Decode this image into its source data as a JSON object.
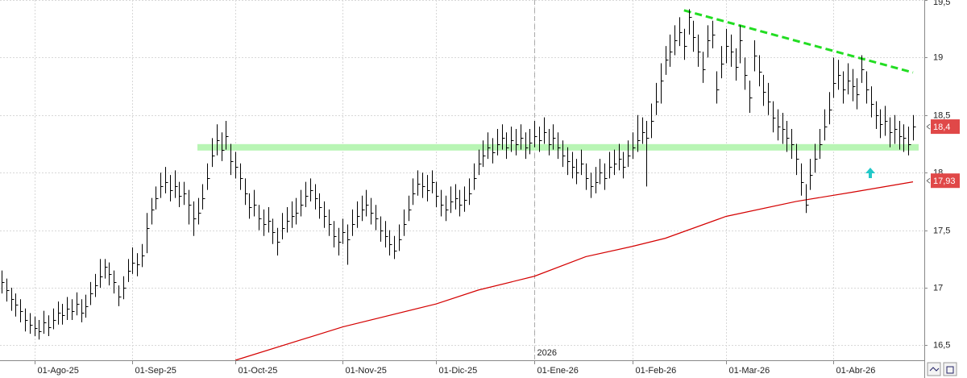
{
  "chart_data": {
    "type": "ohlc",
    "categories": [
      null,
      null,
      null,
      null,
      null,
      null,
      null,
      "01-Ago-25",
      null,
      null,
      null,
      null,
      null,
      null,
      null,
      null,
      null,
      null,
      null,
      null,
      null,
      null,
      null,
      null,
      null,
      null,
      null,
      null,
      "01-Sep-25",
      null,
      null,
      null,
      null,
      null,
      null,
      null,
      null,
      null,
      null,
      null,
      null,
      null,
      null,
      null,
      null,
      null,
      null,
      null,
      null,
      null,
      "01-Oct-25",
      null,
      null,
      null,
      null,
      null,
      null,
      null,
      null,
      null,
      null,
      null,
      null,
      null,
      null,
      null,
      null,
      null,
      null,
      null,
      null,
      null,
      null,
      "01-Nov-25",
      null,
      null,
      null,
      null,
      null,
      null,
      null,
      null,
      null,
      null,
      null,
      null,
      null,
      null,
      null,
      null,
      null,
      null,
      null,
      "01-Dic-25",
      null,
      null,
      null,
      null,
      null,
      null,
      null,
      null,
      null,
      null,
      null,
      null,
      null,
      null,
      null,
      null,
      null,
      null,
      null,
      null,
      "01-Ene-26",
      null,
      null,
      null,
      null,
      null,
      null,
      null,
      null,
      null,
      null,
      null,
      null,
      null,
      null,
      null,
      null,
      null,
      null,
      null,
      null,
      "01-Feb-26",
      null,
      null,
      null,
      null,
      null,
      null,
      null,
      null,
      null,
      null,
      null,
      null,
      null,
      null,
      null,
      null,
      null,
      null,
      null,
      "01-Mar-26",
      null,
      null,
      null,
      null,
      null,
      null,
      null,
      null,
      null,
      null,
      null,
      null,
      null,
      null,
      null,
      null,
      null,
      null,
      null,
      null,
      null,
      null,
      "01-Abr-26",
      null,
      null,
      null,
      null,
      null,
      null,
      null,
      null,
      null,
      null,
      null,
      null,
      null,
      null,
      null,
      null,
      null
    ],
    "high": [
      17.15,
      17.08,
      17.0,
      16.95,
      16.9,
      16.82,
      16.78,
      16.75,
      16.72,
      16.8,
      16.76,
      16.82,
      16.88,
      16.86,
      16.92,
      16.9,
      16.96,
      16.9,
      16.94,
      17.05,
      17.12,
      17.25,
      17.25,
      17.22,
      17.15,
      17.02,
      17.1,
      17.25,
      17.35,
      17.3,
      17.38,
      17.65,
      17.78,
      17.88,
      18.0,
      18.05,
      17.98,
      18.02,
      17.92,
      17.92,
      17.85,
      17.75,
      17.78,
      17.9,
      18.08,
      18.3,
      18.42,
      18.35,
      18.45,
      18.25,
      18.18,
      18.08,
      17.95,
      17.82,
      17.85,
      17.72,
      17.68,
      17.7,
      17.6,
      17.52,
      17.65,
      17.7,
      17.75,
      17.78,
      17.85,
      17.92,
      17.95,
      17.9,
      17.82,
      17.75,
      17.68,
      17.58,
      17.52,
      17.6,
      17.55,
      17.68,
      17.75,
      17.8,
      17.85,
      17.78,
      17.72,
      17.62,
      17.58,
      17.5,
      17.45,
      17.55,
      17.68,
      17.8,
      17.95,
      18.02,
      18.0,
      17.98,
      18.02,
      17.92,
      17.85,
      17.8,
      17.88,
      17.9,
      17.85,
      17.88,
      17.95,
      18.08,
      18.2,
      18.28,
      18.35,
      18.3,
      18.38,
      18.42,
      18.35,
      18.4,
      18.38,
      18.42,
      18.35,
      18.38,
      18.45,
      18.4,
      18.48,
      18.38,
      18.42,
      18.35,
      18.28,
      18.22,
      18.18,
      18.12,
      18.2,
      18.08,
      18.0,
      18.05,
      18.12,
      18.08,
      18.18,
      18.2,
      18.25,
      18.18,
      18.28,
      18.35,
      18.5,
      18.48,
      18.45,
      18.6,
      18.78,
      18.95,
      19.1,
      19.2,
      19.28,
      19.35,
      19.25,
      19.42,
      19.32,
      19.2,
      19.05,
      19.28,
      19.32,
      18.88,
      19.1,
      19.25,
      19.2,
      19.08,
      19.28,
      19.0,
      18.8,
      19.15,
      19.02,
      18.85,
      18.78,
      18.62,
      18.55,
      18.52,
      18.45,
      18.38,
      18.25,
      18.08,
      17.9,
      18.12,
      18.25,
      18.38,
      18.55,
      18.7,
      19.0,
      18.98,
      18.88,
      18.95,
      18.9,
      18.82,
      19.02,
      18.88,
      18.75,
      18.62,
      18.55,
      18.58,
      18.48,
      18.5,
      18.45,
      18.42,
      18.4,
      18.5
    ],
    "low": [
      16.95,
      16.88,
      16.8,
      16.75,
      16.7,
      16.62,
      16.6,
      16.58,
      16.55,
      16.6,
      16.58,
      16.64,
      16.68,
      16.68,
      16.72,
      16.72,
      16.76,
      16.7,
      16.74,
      16.85,
      16.92,
      17.0,
      17.08,
      17.02,
      16.95,
      16.84,
      16.9,
      17.05,
      17.12,
      17.1,
      17.18,
      17.3,
      17.55,
      17.68,
      17.78,
      17.82,
      17.75,
      17.78,
      17.7,
      17.72,
      17.55,
      17.45,
      17.55,
      17.68,
      17.85,
      18.05,
      18.15,
      18.1,
      18.2,
      17.98,
      17.95,
      17.85,
      17.72,
      17.6,
      17.62,
      17.5,
      17.45,
      17.48,
      17.38,
      17.28,
      17.42,
      17.48,
      17.52,
      17.55,
      17.62,
      17.7,
      17.75,
      17.68,
      17.6,
      17.52,
      17.45,
      17.35,
      17.28,
      17.38,
      17.2,
      17.45,
      17.52,
      17.58,
      17.62,
      17.55,
      17.5,
      17.4,
      17.35,
      17.28,
      17.25,
      17.32,
      17.45,
      17.58,
      17.72,
      17.8,
      17.78,
      17.75,
      17.82,
      17.7,
      17.62,
      17.58,
      17.65,
      17.68,
      17.62,
      17.66,
      17.72,
      17.85,
      17.98,
      18.05,
      18.12,
      18.08,
      18.15,
      18.2,
      18.12,
      18.18,
      18.15,
      18.2,
      18.12,
      18.16,
      18.22,
      18.18,
      18.25,
      18.15,
      18.2,
      18.12,
      18.05,
      17.98,
      17.95,
      17.9,
      17.98,
      17.85,
      17.78,
      17.82,
      17.9,
      17.85,
      17.95,
      17.98,
      18.02,
      17.95,
      18.05,
      18.12,
      18.18,
      18.25,
      17.88,
      18.3,
      18.5,
      18.6,
      18.85,
      18.92,
      19.02,
      19.1,
      18.98,
      19.2,
      19.05,
      18.92,
      18.78,
      19.0,
      19.08,
      18.6,
      18.82,
      18.95,
      18.92,
      18.8,
      18.95,
      18.72,
      18.52,
      18.88,
      18.75,
      18.58,
      18.5,
      18.35,
      18.28,
      18.25,
      18.18,
      18.12,
      17.98,
      17.8,
      17.65,
      17.85,
      18.0,
      18.12,
      18.28,
      18.42,
      18.65,
      18.72,
      18.6,
      18.68,
      18.62,
      18.55,
      18.78,
      18.6,
      18.48,
      18.38,
      18.3,
      18.32,
      18.22,
      18.25,
      18.2,
      18.18,
      18.15,
      18.28
    ],
    "close": [
      17.05,
      16.98,
      16.9,
      16.85,
      16.8,
      16.72,
      16.68,
      16.65,
      16.62,
      16.7,
      16.66,
      16.72,
      16.78,
      16.76,
      16.82,
      16.8,
      16.86,
      16.78,
      16.84,
      16.95,
      17.02,
      17.1,
      17.18,
      17.12,
      17.05,
      16.92,
      17.0,
      17.15,
      17.22,
      17.2,
      17.28,
      17.52,
      17.68,
      17.78,
      17.88,
      17.92,
      17.85,
      17.88,
      17.8,
      17.82,
      17.72,
      17.6,
      17.65,
      17.78,
      17.95,
      18.15,
      18.28,
      18.2,
      18.32,
      18.1,
      18.05,
      17.95,
      17.82,
      17.7,
      17.72,
      17.6,
      17.55,
      17.58,
      17.48,
      17.4,
      17.52,
      17.58,
      17.62,
      17.65,
      17.72,
      17.8,
      17.85,
      17.78,
      17.7,
      17.62,
      17.55,
      17.45,
      17.4,
      17.48,
      17.42,
      17.55,
      17.62,
      17.68,
      17.72,
      17.65,
      17.6,
      17.5,
      17.45,
      17.38,
      17.32,
      17.42,
      17.55,
      17.68,
      17.82,
      17.9,
      17.88,
      17.85,
      17.92,
      17.8,
      17.72,
      17.68,
      17.75,
      17.78,
      17.72,
      17.76,
      17.82,
      17.95,
      18.08,
      18.15,
      18.22,
      18.18,
      18.25,
      18.3,
      18.22,
      18.28,
      18.25,
      18.3,
      18.22,
      18.26,
      18.32,
      18.28,
      18.35,
      18.25,
      18.3,
      18.22,
      18.15,
      18.1,
      18.05,
      18.0,
      18.08,
      17.95,
      17.88,
      17.92,
      18.0,
      17.95,
      18.05,
      18.08,
      18.12,
      18.05,
      18.15,
      18.22,
      18.28,
      18.35,
      18.3,
      18.45,
      18.62,
      18.8,
      18.98,
      19.05,
      19.15,
      19.22,
      19.1,
      19.35,
      19.18,
      19.05,
      18.9,
      19.15,
      19.2,
      18.72,
      18.95,
      19.1,
      19.05,
      18.92,
      19.15,
      18.85,
      18.65,
      19.02,
      18.88,
      18.7,
      18.62,
      18.48,
      18.4,
      18.38,
      18.3,
      18.25,
      18.12,
      17.92,
      17.72,
      17.98,
      18.12,
      18.25,
      18.4,
      18.55,
      18.78,
      18.85,
      18.72,
      18.8,
      18.75,
      18.68,
      18.9,
      18.72,
      18.6,
      18.5,
      18.42,
      18.45,
      18.35,
      18.38,
      18.32,
      18.3,
      18.25,
      18.4
    ],
    "moving_average": {
      "color": "#d40000",
      "x": [
        50,
        73,
        93,
        102,
        114,
        125,
        135,
        142,
        155,
        170,
        182,
        195
      ],
      "values": [
        16.37,
        16.66,
        16.86,
        16.98,
        17.1,
        17.27,
        17.36,
        17.43,
        17.62,
        17.75,
        17.83,
        17.92
      ],
      "last_value": {
        "value": 17.93,
        "label": "17,93"
      }
    },
    "last_price": {
      "value": 18.4,
      "label": "18,4"
    },
    "support": {
      "value": 18.22,
      "color": "#b8f5b4"
    },
    "trendline": {
      "color": "#22dd22",
      "x": [
        146,
        195
      ],
      "values": [
        19.41,
        18.87
      ]
    },
    "year_marker": {
      "x": 114,
      "label": "2026"
    },
    "ylim": [
      16.37,
      19.5
    ],
    "yticks": [
      {
        "value": 16.5,
        "label": "16,5"
      },
      17,
      {
        "value": 17.5,
        "label": "17,5"
      },
      18,
      {
        "value": 18.5,
        "label": "18,5"
      },
      19,
      {
        "value": 19.5,
        "label": "19,5"
      }
    ],
    "grid": true,
    "bar_color": "#000000",
    "label_color": "#e04848"
  }
}
